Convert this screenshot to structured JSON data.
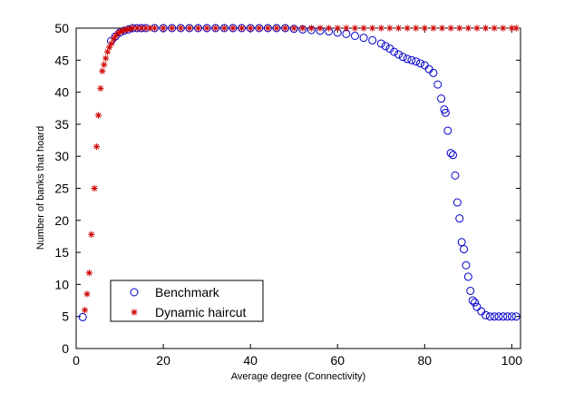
{
  "chart_data": {
    "type": "scatter",
    "title": "",
    "xlabel": "Average degree (Connectivity)",
    "ylabel": "Number of banks that hoard",
    "xlim": [
      0,
      102
    ],
    "ylim": [
      0,
      50
    ],
    "xticks": [
      0,
      20,
      40,
      60,
      80,
      100
    ],
    "yticks": [
      0,
      5,
      10,
      15,
      20,
      25,
      30,
      35,
      40,
      45,
      50
    ],
    "grid": false,
    "legend": "bottom-left",
    "series": [
      {
        "name": "Benchmark",
        "marker": "circle",
        "color": "#0000cc",
        "points": [
          [
            1.5,
            4.9
          ],
          [
            8,
            48
          ],
          [
            9,
            48.7
          ],
          [
            10,
            49.3
          ],
          [
            11,
            49.6
          ],
          [
            12,
            49.8
          ],
          [
            13,
            50
          ],
          [
            14,
            50
          ],
          [
            15,
            50
          ],
          [
            16,
            50
          ],
          [
            18,
            50
          ],
          [
            20,
            50
          ],
          [
            22,
            50
          ],
          [
            24,
            50
          ],
          [
            26,
            50
          ],
          [
            28,
            50
          ],
          [
            30,
            50
          ],
          [
            32,
            50
          ],
          [
            34,
            50
          ],
          [
            36,
            50
          ],
          [
            38,
            50
          ],
          [
            40,
            50
          ],
          [
            42,
            50
          ],
          [
            44,
            50
          ],
          [
            46,
            50
          ],
          [
            48,
            50
          ],
          [
            50,
            49.9
          ],
          [
            52,
            49.8
          ],
          [
            54,
            49.7
          ],
          [
            56,
            49.6
          ],
          [
            58,
            49.5
          ],
          [
            60,
            49.3
          ],
          [
            62,
            49.1
          ],
          [
            64,
            48.8
          ],
          [
            66,
            48.5
          ],
          [
            68,
            48.1
          ],
          [
            70,
            47.6
          ],
          [
            71,
            47.2
          ],
          [
            72,
            46.8
          ],
          [
            73,
            46.3
          ],
          [
            74,
            45.9
          ],
          [
            75,
            45.5
          ],
          [
            76,
            45.2
          ],
          [
            77,
            45
          ],
          [
            78,
            44.8
          ],
          [
            79,
            44.5
          ],
          [
            80,
            44.2
          ],
          [
            81,
            43.6
          ],
          [
            82,
            43
          ],
          [
            83,
            41.2
          ],
          [
            83.8,
            39
          ],
          [
            84.5,
            37.3
          ],
          [
            84.8,
            36.8
          ],
          [
            85.3,
            34
          ],
          [
            86,
            30.5
          ],
          [
            86.5,
            30.2
          ],
          [
            87,
            27
          ],
          [
            87.5,
            22.8
          ],
          [
            88,
            20.3
          ],
          [
            88.5,
            16.6
          ],
          [
            89,
            15.5
          ],
          [
            89.5,
            13
          ],
          [
            90,
            11.2
          ],
          [
            90.5,
            9
          ],
          [
            91,
            7.5
          ],
          [
            91.5,
            7.2
          ],
          [
            92,
            6.5
          ],
          [
            93,
            5.8
          ],
          [
            94,
            5.2
          ],
          [
            95,
            5
          ],
          [
            96,
            5
          ],
          [
            97,
            5
          ],
          [
            98,
            5
          ],
          [
            99,
            5
          ],
          [
            100,
            5
          ],
          [
            101,
            5
          ]
        ]
      },
      {
        "name": "Dynamic haircut",
        "marker": "star",
        "color": "#cc0000",
        "points": [
          [
            2,
            6
          ],
          [
            2.5,
            8.5
          ],
          [
            3,
            11.8
          ],
          [
            3.5,
            17.8
          ],
          [
            4.2,
            25
          ],
          [
            4.7,
            31.5
          ],
          [
            5.1,
            36.4
          ],
          [
            5.6,
            40.6
          ],
          [
            6,
            43.3
          ],
          [
            6.4,
            44.3
          ],
          [
            6.8,
            45.3
          ],
          [
            7.2,
            46.3
          ],
          [
            7.6,
            47
          ],
          [
            8.1,
            47.6
          ],
          [
            8.6,
            48.3
          ],
          [
            9.1,
            48.8
          ],
          [
            9.6,
            49.2
          ],
          [
            10.1,
            49.4
          ],
          [
            10.6,
            49.6
          ],
          [
            11.2,
            49.7
          ],
          [
            11.8,
            49.8
          ],
          [
            12.5,
            49.9
          ],
          [
            13,
            50
          ],
          [
            14,
            50
          ],
          [
            15,
            50
          ],
          [
            16,
            50
          ],
          [
            17,
            50
          ],
          [
            18,
            50
          ],
          [
            20,
            50
          ],
          [
            22,
            50
          ],
          [
            24,
            50
          ],
          [
            26,
            50
          ],
          [
            28,
            50
          ],
          [
            30,
            50
          ],
          [
            32,
            50
          ],
          [
            34,
            50
          ],
          [
            36,
            50
          ],
          [
            38,
            50
          ],
          [
            40,
            50
          ],
          [
            42,
            50
          ],
          [
            44,
            50
          ],
          [
            46,
            50
          ],
          [
            48,
            50
          ],
          [
            50,
            50
          ],
          [
            52,
            50
          ],
          [
            54,
            50
          ],
          [
            56,
            50
          ],
          [
            58,
            50
          ],
          [
            60,
            50
          ],
          [
            62,
            50
          ],
          [
            64,
            50
          ],
          [
            66,
            50
          ],
          [
            68,
            50
          ],
          [
            70,
            50
          ],
          [
            72,
            50
          ],
          [
            74,
            50
          ],
          [
            76,
            50
          ],
          [
            78,
            50
          ],
          [
            80,
            50
          ],
          [
            82,
            50
          ],
          [
            84,
            50
          ],
          [
            86,
            50
          ],
          [
            88,
            50
          ],
          [
            90,
            50
          ],
          [
            92,
            50
          ],
          [
            94,
            50
          ],
          [
            96,
            50
          ],
          [
            98,
            50
          ],
          [
            100,
            50
          ],
          [
            101,
            50
          ]
        ]
      }
    ]
  }
}
